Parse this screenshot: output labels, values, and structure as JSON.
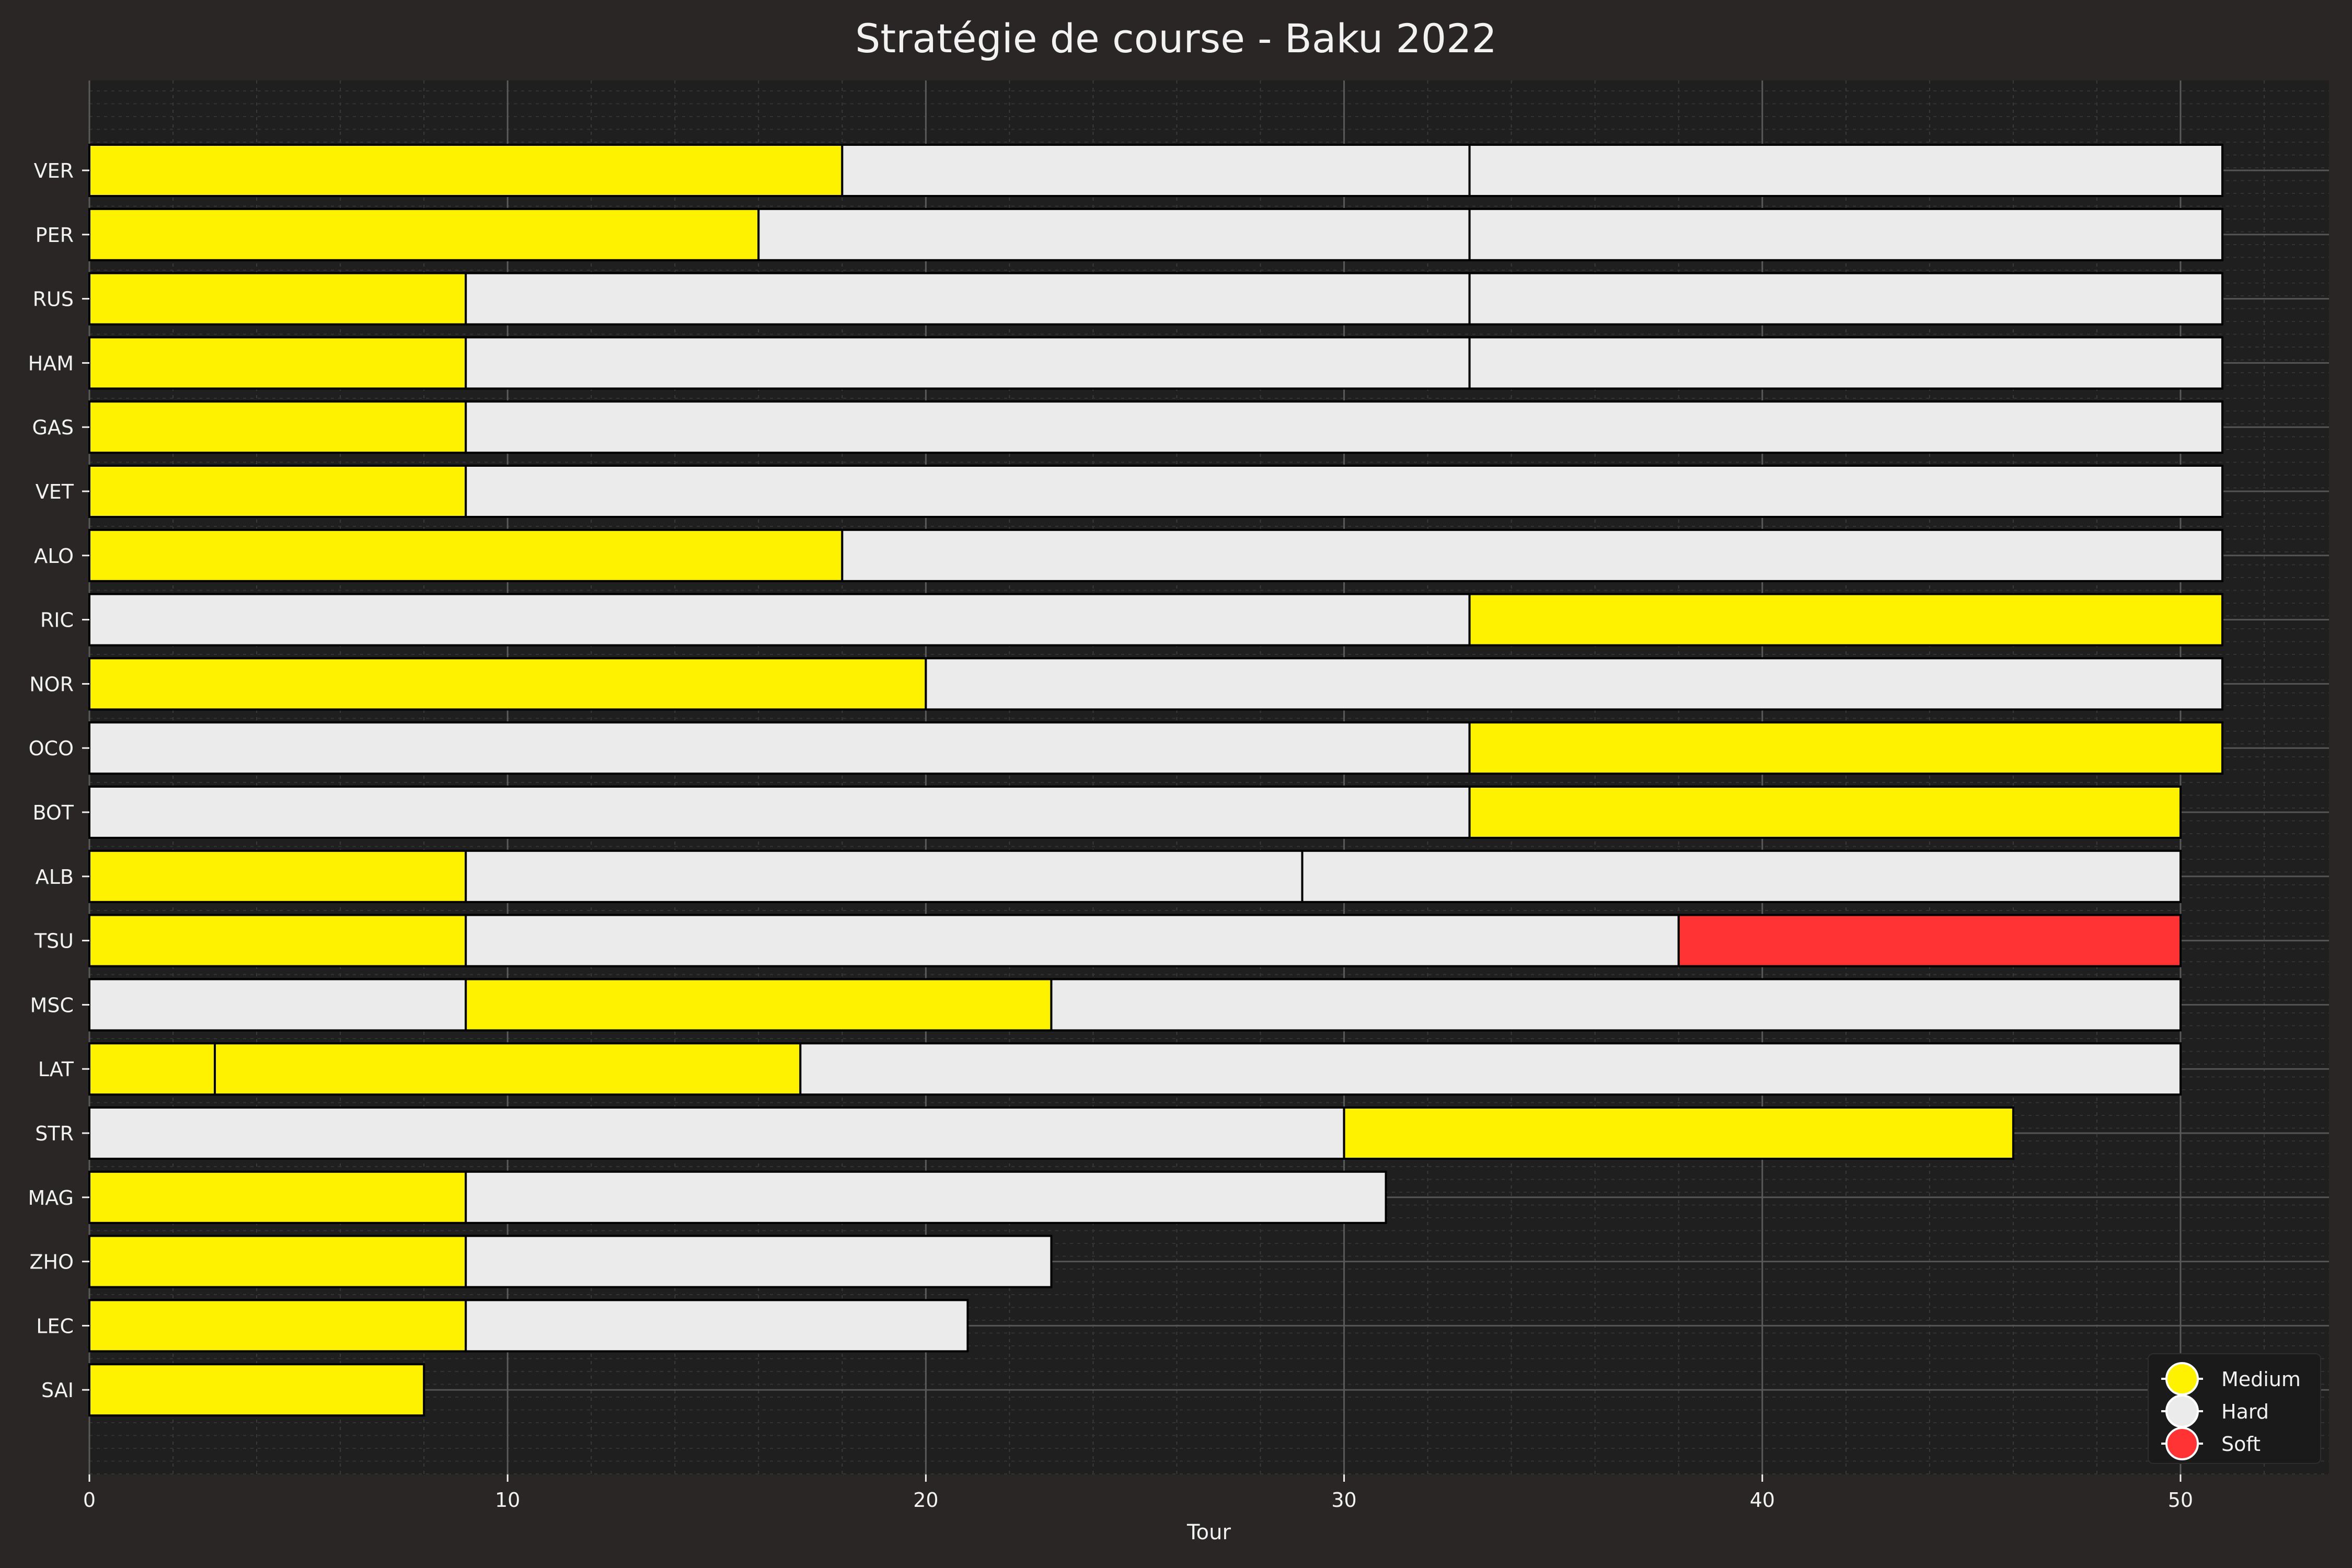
{
  "chart_data": {
    "type": "bar",
    "orientation": "horizontal-stacked",
    "title": "Stratégie de course - Baku 2022",
    "xlabel": "Tour",
    "ylabel": "",
    "xlim": [
      0,
      53.55
    ],
    "xticks": [
      0,
      10,
      20,
      30,
      40,
      50
    ],
    "grid": true,
    "legend_position": "bottom-right",
    "compounds": {
      "Medium": "#fff200",
      "Hard": "#ebebeb",
      "Soft": "#ff3333"
    },
    "legend": [
      "Medium",
      "Hard",
      "Soft"
    ],
    "drivers": [
      {
        "driver": "VER",
        "stints": [
          {
            "compound": "Medium",
            "start": 0,
            "end": 18
          },
          {
            "compound": "Hard",
            "start": 18,
            "end": 33
          },
          {
            "compound": "Hard",
            "start": 33,
            "end": 51
          }
        ]
      },
      {
        "driver": "PER",
        "stints": [
          {
            "compound": "Medium",
            "start": 0,
            "end": 16
          },
          {
            "compound": "Hard",
            "start": 16,
            "end": 33
          },
          {
            "compound": "Hard",
            "start": 33,
            "end": 51
          }
        ]
      },
      {
        "driver": "RUS",
        "stints": [
          {
            "compound": "Medium",
            "start": 0,
            "end": 9
          },
          {
            "compound": "Hard",
            "start": 9,
            "end": 33
          },
          {
            "compound": "Hard",
            "start": 33,
            "end": 51
          }
        ]
      },
      {
        "driver": "HAM",
        "stints": [
          {
            "compound": "Medium",
            "start": 0,
            "end": 9
          },
          {
            "compound": "Hard",
            "start": 9,
            "end": 33
          },
          {
            "compound": "Hard",
            "start": 33,
            "end": 51
          }
        ]
      },
      {
        "driver": "GAS",
        "stints": [
          {
            "compound": "Medium",
            "start": 0,
            "end": 9
          },
          {
            "compound": "Hard",
            "start": 9,
            "end": 51
          }
        ]
      },
      {
        "driver": "VET",
        "stints": [
          {
            "compound": "Medium",
            "start": 0,
            "end": 9
          },
          {
            "compound": "Hard",
            "start": 9,
            "end": 51
          }
        ]
      },
      {
        "driver": "ALO",
        "stints": [
          {
            "compound": "Medium",
            "start": 0,
            "end": 18
          },
          {
            "compound": "Hard",
            "start": 18,
            "end": 51
          }
        ]
      },
      {
        "driver": "RIC",
        "stints": [
          {
            "compound": "Hard",
            "start": 0,
            "end": 33
          },
          {
            "compound": "Medium",
            "start": 33,
            "end": 51
          }
        ]
      },
      {
        "driver": "NOR",
        "stints": [
          {
            "compound": "Medium",
            "start": 0,
            "end": 20
          },
          {
            "compound": "Hard",
            "start": 20,
            "end": 51
          }
        ]
      },
      {
        "driver": "OCO",
        "stints": [
          {
            "compound": "Hard",
            "start": 0,
            "end": 33
          },
          {
            "compound": "Medium",
            "start": 33,
            "end": 51
          }
        ]
      },
      {
        "driver": "BOT",
        "stints": [
          {
            "compound": "Hard",
            "start": 0,
            "end": 33
          },
          {
            "compound": "Medium",
            "start": 33,
            "end": 50
          }
        ]
      },
      {
        "driver": "ALB",
        "stints": [
          {
            "compound": "Medium",
            "start": 0,
            "end": 9
          },
          {
            "compound": "Hard",
            "start": 9,
            "end": 29
          },
          {
            "compound": "Hard",
            "start": 29,
            "end": 50
          }
        ]
      },
      {
        "driver": "TSU",
        "stints": [
          {
            "compound": "Medium",
            "start": 0,
            "end": 9
          },
          {
            "compound": "Hard",
            "start": 9,
            "end": 38
          },
          {
            "compound": "Soft",
            "start": 38,
            "end": 50
          }
        ]
      },
      {
        "driver": "MSC",
        "stints": [
          {
            "compound": "Hard",
            "start": 0,
            "end": 9
          },
          {
            "compound": "Medium",
            "start": 9,
            "end": 23
          },
          {
            "compound": "Hard",
            "start": 23,
            "end": 50
          }
        ]
      },
      {
        "driver": "LAT",
        "stints": [
          {
            "compound": "Medium",
            "start": 0,
            "end": 3
          },
          {
            "compound": "Medium",
            "start": 3,
            "end": 17
          },
          {
            "compound": "Hard",
            "start": 17,
            "end": 50
          }
        ]
      },
      {
        "driver": "STR",
        "stints": [
          {
            "compound": "Hard",
            "start": 0,
            "end": 30
          },
          {
            "compound": "Medium",
            "start": 30,
            "end": 46
          }
        ]
      },
      {
        "driver": "MAG",
        "stints": [
          {
            "compound": "Medium",
            "start": 0,
            "end": 9
          },
          {
            "compound": "Hard",
            "start": 9,
            "end": 31
          }
        ]
      },
      {
        "driver": "ZHO",
        "stints": [
          {
            "compound": "Medium",
            "start": 0,
            "end": 9
          },
          {
            "compound": "Hard",
            "start": 9,
            "end": 23
          }
        ]
      },
      {
        "driver": "LEC",
        "stints": [
          {
            "compound": "Medium",
            "start": 0,
            "end": 9
          },
          {
            "compound": "Hard",
            "start": 9,
            "end": 21
          }
        ]
      },
      {
        "driver": "SAI",
        "stints": [
          {
            "compound": "Medium",
            "start": 0,
            "end": 8
          }
        ]
      }
    ]
  }
}
